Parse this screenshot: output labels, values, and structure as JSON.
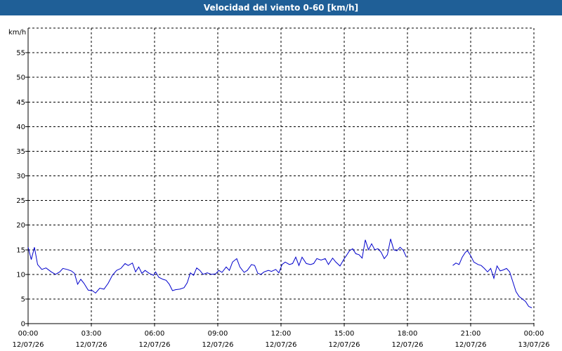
{
  "window": {
    "title": "Velocidad del viento 0-60 [km/h]"
  },
  "chart_data": {
    "type": "line",
    "title": "Velocidad del viento 0-60 [km/h]",
    "ylabel": "km/h",
    "xlabel": "",
    "ylim": [
      0,
      60
    ],
    "xlim": [
      0,
      24
    ],
    "yticks": [
      0,
      5,
      10,
      15,
      20,
      25,
      30,
      35,
      40,
      45,
      50,
      55
    ],
    "xticks": [
      {
        "x": 0,
        "time": "00:00",
        "date": "12/07/26"
      },
      {
        "x": 3,
        "time": "03:00",
        "date": "12/07/26"
      },
      {
        "x": 6,
        "time": "06:00",
        "date": "12/07/26"
      },
      {
        "x": 9,
        "time": "09:00",
        "date": "12/07/26"
      },
      {
        "x": 12,
        "time": "12:00",
        "date": "12/07/26"
      },
      {
        "x": 15,
        "time": "15:00",
        "date": "12/07/26"
      },
      {
        "x": 18,
        "time": "18:00",
        "date": "12/07/26"
      },
      {
        "x": 21,
        "time": "21:00",
        "date": "12/07/26"
      },
      {
        "x": 24,
        "time": "00:00",
        "date": "13/07/26"
      }
    ],
    "grid": true,
    "line_color": "#0000cc",
    "series": [
      {
        "segments": [
          [
            [
              0.0,
              15.5
            ],
            [
              0.15,
              13.0
            ],
            [
              0.3,
              15.5
            ],
            [
              0.45,
              12.0
            ],
            [
              0.65,
              11.0
            ],
            [
              0.85,
              11.3
            ],
            [
              1.1,
              10.5
            ],
            [
              1.3,
              10.0
            ],
            [
              1.5,
              10.5
            ],
            [
              1.65,
              11.2
            ],
            [
              1.85,
              11.0
            ],
            [
              2.05,
              10.7
            ],
            [
              2.2,
              10.2
            ],
            [
              2.35,
              8.0
            ],
            [
              2.5,
              9.0
            ],
            [
              2.65,
              8.2
            ],
            [
              2.85,
              6.8
            ],
            [
              3.05,
              6.7
            ],
            [
              3.2,
              6.2
            ],
            [
              3.4,
              7.2
            ],
            [
              3.6,
              7.0
            ],
            [
              3.8,
              8.2
            ],
            [
              4.0,
              9.8
            ],
            [
              4.2,
              10.8
            ],
            [
              4.4,
              11.2
            ],
            [
              4.6,
              12.2
            ],
            [
              4.75,
              11.8
            ],
            [
              4.95,
              12.3
            ],
            [
              5.1,
              10.5
            ],
            [
              5.25,
              11.5
            ],
            [
              5.4,
              10.2
            ],
            [
              5.55,
              10.8
            ],
            [
              5.75,
              10.2
            ],
            [
              5.95,
              9.8
            ],
            [
              6.05,
              10.5
            ],
            [
              6.2,
              9.4
            ],
            [
              6.4,
              9.0
            ],
            [
              6.55,
              8.8
            ],
            [
              6.7,
              8.0
            ],
            [
              6.85,
              6.7
            ],
            [
              7.0,
              6.9
            ],
            [
              7.2,
              7.0
            ],
            [
              7.4,
              7.3
            ],
            [
              7.55,
              8.3
            ],
            [
              7.7,
              10.3
            ],
            [
              7.85,
              9.8
            ],
            [
              8.0,
              11.3
            ],
            [
              8.15,
              10.8
            ],
            [
              8.3,
              10.0
            ],
            [
              8.5,
              10.3
            ],
            [
              8.7,
              10.0
            ],
            [
              8.9,
              10.1
            ],
            [
              9.05,
              10.8
            ],
            [
              9.2,
              10.4
            ],
            [
              9.4,
              11.5
            ],
            [
              9.55,
              10.8
            ],
            [
              9.7,
              12.5
            ],
            [
              9.9,
              13.2
            ],
            [
              10.05,
              11.5
            ],
            [
              10.25,
              10.4
            ],
            [
              10.4,
              10.8
            ],
            [
              10.6,
              12.0
            ],
            [
              10.75,
              11.8
            ],
            [
              10.9,
              10.2
            ],
            [
              11.05,
              10.0
            ],
            [
              11.2,
              10.5
            ],
            [
              11.4,
              10.8
            ],
            [
              11.55,
              10.6
            ],
            [
              11.75,
              11.0
            ],
            [
              11.9,
              10.3
            ],
            [
              12.05,
              12.0
            ],
            [
              12.2,
              12.5
            ],
            [
              12.4,
              12.0
            ],
            [
              12.55,
              12.2
            ],
            [
              12.7,
              13.5
            ],
            [
              12.85,
              11.8
            ],
            [
              13.0,
              13.5
            ],
            [
              13.2,
              12.2
            ],
            [
              13.4,
              12.0
            ],
            [
              13.55,
              12.2
            ],
            [
              13.7,
              13.2
            ],
            [
              13.9,
              12.9
            ],
            [
              14.1,
              13.2
            ],
            [
              14.25,
              12.0
            ],
            [
              14.45,
              13.3
            ],
            [
              14.6,
              12.5
            ],
            [
              14.8,
              11.7
            ],
            [
              15.0,
              13.2
            ],
            [
              15.1,
              13.8
            ],
            [
              15.25,
              14.8
            ],
            [
              15.4,
              15.2
            ],
            [
              15.55,
              14.2
            ],
            [
              15.7,
              14.0
            ],
            [
              15.85,
              13.3
            ],
            [
              16.0,
              17.0
            ],
            [
              16.15,
              15.0
            ],
            [
              16.3,
              16.2
            ],
            [
              16.45,
              15.0
            ],
            [
              16.6,
              15.2
            ],
            [
              16.75,
              14.5
            ],
            [
              16.9,
              13.2
            ],
            [
              17.05,
              14.0
            ],
            [
              17.2,
              17.2
            ],
            [
              17.35,
              15.0
            ],
            [
              17.5,
              14.8
            ],
            [
              17.65,
              15.5
            ],
            [
              17.8,
              14.9
            ],
            [
              17.95,
              13.5
            ]
          ],
          [
            [
              20.15,
              11.8
            ],
            [
              20.3,
              12.3
            ],
            [
              20.45,
              12.0
            ],
            [
              20.6,
              13.5
            ],
            [
              20.75,
              14.5
            ],
            [
              20.85,
              14.8
            ],
            [
              21.0,
              13.8
            ],
            [
              21.15,
              12.5
            ],
            [
              21.35,
              12.0
            ],
            [
              21.5,
              11.8
            ],
            [
              21.65,
              11.2
            ],
            [
              21.8,
              10.5
            ],
            [
              21.95,
              11.2
            ],
            [
              22.1,
              9.2
            ],
            [
              22.25,
              11.7
            ],
            [
              22.4,
              10.7
            ],
            [
              22.55,
              10.9
            ],
            [
              22.7,
              11.2
            ],
            [
              22.85,
              10.5
            ],
            [
              23.0,
              8.5
            ],
            [
              23.15,
              6.5
            ],
            [
              23.3,
              5.5
            ],
            [
              23.45,
              5.0
            ],
            [
              23.6,
              4.5
            ],
            [
              23.75,
              3.5
            ],
            [
              23.9,
              3.2
            ]
          ]
        ]
      }
    ]
  }
}
